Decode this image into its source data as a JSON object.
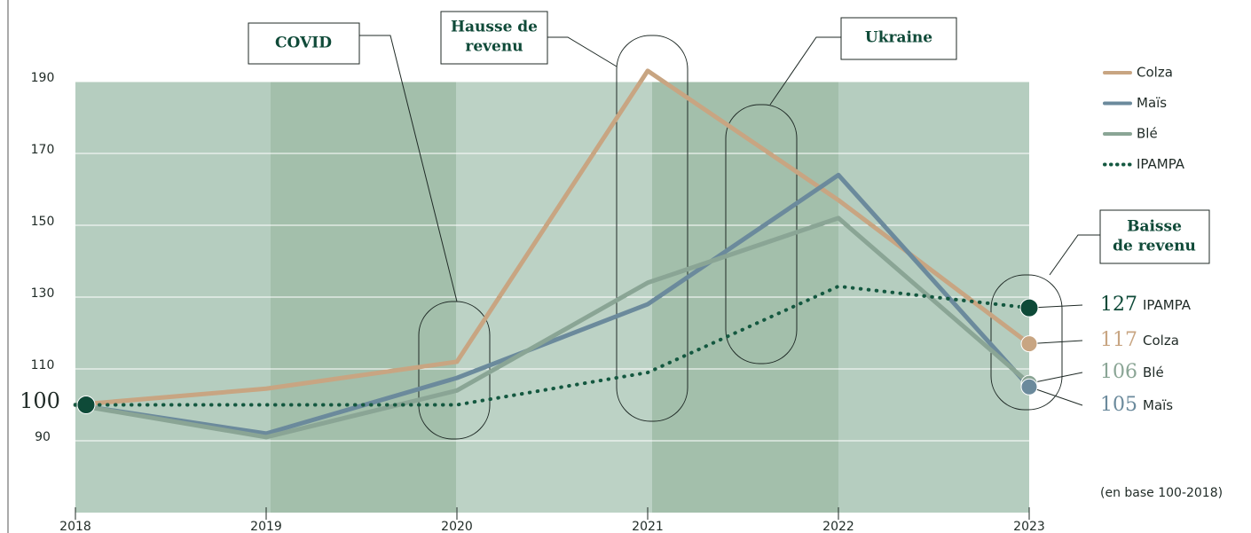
{
  "chart_data": {
    "type": "line",
    "x": [
      2018,
      2019,
      2020,
      2021,
      2022,
      2023
    ],
    "xlim": [
      2018,
      2023
    ],
    "xticks": [
      2018,
      2019,
      2020,
      2021,
      2022,
      2023
    ],
    "ylim": [
      70,
      190
    ],
    "yticks": [
      90,
      110,
      130,
      150,
      170,
      190
    ],
    "grid": true,
    "series": [
      {
        "name": "Colza",
        "color": "#c8a582",
        "style": "solid",
        "values": [
          100,
          104.5,
          112,
          193,
          157,
          117
        ]
      },
      {
        "name": "Maïs",
        "color": "#6b8a9c",
        "style": "solid",
        "values": [
          100,
          92,
          107.5,
          128,
          164,
          105
        ]
      },
      {
        "name": "Blé",
        "color": "#8aa595",
        "style": "solid",
        "values": [
          100,
          91,
          104,
          134,
          152,
          106
        ]
      },
      {
        "name": "IPAMPA",
        "color": "#145840",
        "style": "dotted",
        "values": [
          100,
          100,
          100,
          109,
          133,
          127
        ]
      }
    ],
    "annotations": [
      {
        "lines": [
          "COVID"
        ]
      },
      {
        "lines": [
          "Hausse de",
          "revenu"
        ]
      },
      {
        "lines": [
          "Ukraine"
        ]
      },
      {
        "lines": [
          "Baisse",
          "de revenu"
        ]
      }
    ],
    "note": "(en base 100-2018)",
    "legend": "top-right"
  }
}
